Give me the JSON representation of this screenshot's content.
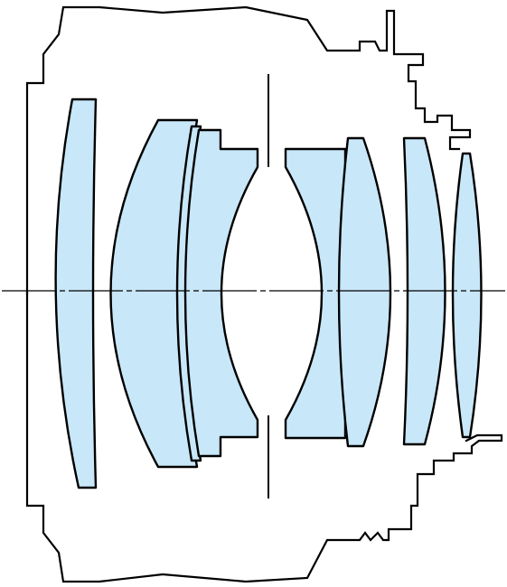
{
  "diagram": {
    "type": "lens-cross-section",
    "colors": {
      "glass": "#c8e7f8",
      "line": "#000000",
      "background": "#ffffff"
    },
    "elements": [
      {
        "name": "element-1",
        "shape": "positive-meniscus"
      },
      {
        "name": "element-2",
        "shape": "positive-meniscus"
      },
      {
        "name": "element-3",
        "shape": "cemented-thin"
      },
      {
        "name": "element-4",
        "shape": "negative-meniscus"
      },
      {
        "name": "element-5",
        "shape": "negative-meniscus"
      },
      {
        "name": "element-6",
        "shape": "biconvex"
      },
      {
        "name": "element-7",
        "shape": "positive-meniscus"
      },
      {
        "name": "element-8",
        "shape": "biconvex"
      }
    ]
  }
}
